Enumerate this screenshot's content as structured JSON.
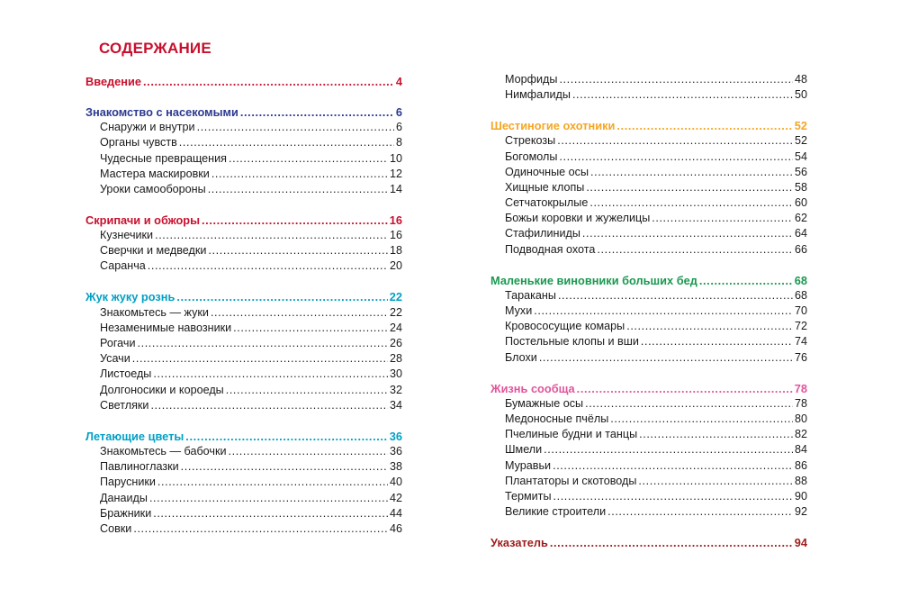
{
  "title": "СОДЕРЖАНИЕ",
  "colors": {
    "intro": "#c8102e",
    "insects": "#2b3990",
    "crickets": "#c8102e",
    "beetles": "#00a0c6",
    "butterflies": "#00a0c6",
    "hunters": "#f5a623",
    "small": "#1a9850",
    "colony": "#e0559a",
    "index": "#9e1b1b"
  },
  "left_column": [
    {
      "heading": "Введение",
      "page": "4",
      "color": "intro",
      "items": []
    },
    {
      "heading": "Знакомство с насекомыми",
      "page": "6",
      "color": "insects",
      "items": [
        {
          "label": "Снаружи и внутри",
          "page": "6"
        },
        {
          "label": "Органы чувств",
          "page": "8"
        },
        {
          "label": "Чудесные превращения",
          "page": "10"
        },
        {
          "label": "Мастера маскировки",
          "page": "12"
        },
        {
          "label": "Уроки самообороны",
          "page": "14"
        }
      ]
    },
    {
      "heading": "Скрипачи и обжоры",
      "page": "16",
      "color": "crickets",
      "items": [
        {
          "label": "Кузнечики",
          "page": "16"
        },
        {
          "label": "Сверчки и медведки",
          "page": "18"
        },
        {
          "label": "Саранча",
          "page": "20"
        }
      ]
    },
    {
      "heading": "Жук жуку рознь",
      "page": "22",
      "color": "beetles",
      "items": [
        {
          "label": "Знакомьтесь — жуки",
          "page": "22"
        },
        {
          "label": "Незаменимые навозники",
          "page": "24"
        },
        {
          "label": "Рогачи",
          "page": "26"
        },
        {
          "label": "Усачи",
          "page": "28"
        },
        {
          "label": "Листоеды",
          "page": "30"
        },
        {
          "label": "Долгоносики и короеды",
          "page": "32"
        },
        {
          "label": "Светляки",
          "page": "34"
        }
      ]
    },
    {
      "heading": "Летающие цветы",
      "page": "36",
      "color": "butterflies",
      "items": [
        {
          "label": "Знакомьтесь — бабочки",
          "page": "36"
        },
        {
          "label": "Павлиноглазки",
          "page": "38"
        },
        {
          "label": "Парусники",
          "page": "40"
        },
        {
          "label": "Данаиды",
          "page": "42"
        },
        {
          "label": "Бражники",
          "page": "44"
        },
        {
          "label": "Совки",
          "page": "46"
        }
      ]
    }
  ],
  "right_column": [
    {
      "heading": null,
      "items": [
        {
          "label": "Морфиды",
          "page": "48"
        },
        {
          "label": "Нимфалиды",
          "page": "50"
        }
      ]
    },
    {
      "heading": "Шестиногие охотники",
      "page": "52",
      "color": "hunters",
      "items": [
        {
          "label": "Стрекозы",
          "page": "52"
        },
        {
          "label": "Богомолы",
          "page": "54"
        },
        {
          "label": "Одиночные осы",
          "page": "56"
        },
        {
          "label": "Хищные клопы",
          "page": "58"
        },
        {
          "label": "Сетчатокрылые",
          "page": "60"
        },
        {
          "label": "Божьи коровки и жужелицы",
          "page": "62"
        },
        {
          "label": "Стафилиниды",
          "page": "64"
        },
        {
          "label": "Подводная охота",
          "page": "66"
        }
      ]
    },
    {
      "heading": "Маленькие виновники больших бед",
      "page": "68",
      "color": "small",
      "items": [
        {
          "label": "Тараканы",
          "page": "68"
        },
        {
          "label": "Мухи",
          "page": "70"
        },
        {
          "label": "Кровососущие комары",
          "page": "72"
        },
        {
          "label": "Постельные клопы и вши",
          "page": "74"
        },
        {
          "label": "Блохи",
          "page": "76"
        }
      ]
    },
    {
      "heading": "Жизнь сообща",
      "page": "78",
      "color": "colony",
      "items": [
        {
          "label": "Бумажные осы",
          "page": "78"
        },
        {
          "label": "Медоносные пчёлы",
          "page": "80"
        },
        {
          "label": "Пчелиные будни и танцы",
          "page": "82"
        },
        {
          "label": "Шмели",
          "page": "84"
        },
        {
          "label": "Муравьи",
          "page": "86"
        },
        {
          "label": "Плантаторы и скотоводы",
          "page": "88"
        },
        {
          "label": "Термиты",
          "page": "90"
        },
        {
          "label": "Великие строители",
          "page": "92"
        }
      ]
    },
    {
      "heading": "Указатель",
      "page": "94",
      "color": "index",
      "items": []
    }
  ]
}
